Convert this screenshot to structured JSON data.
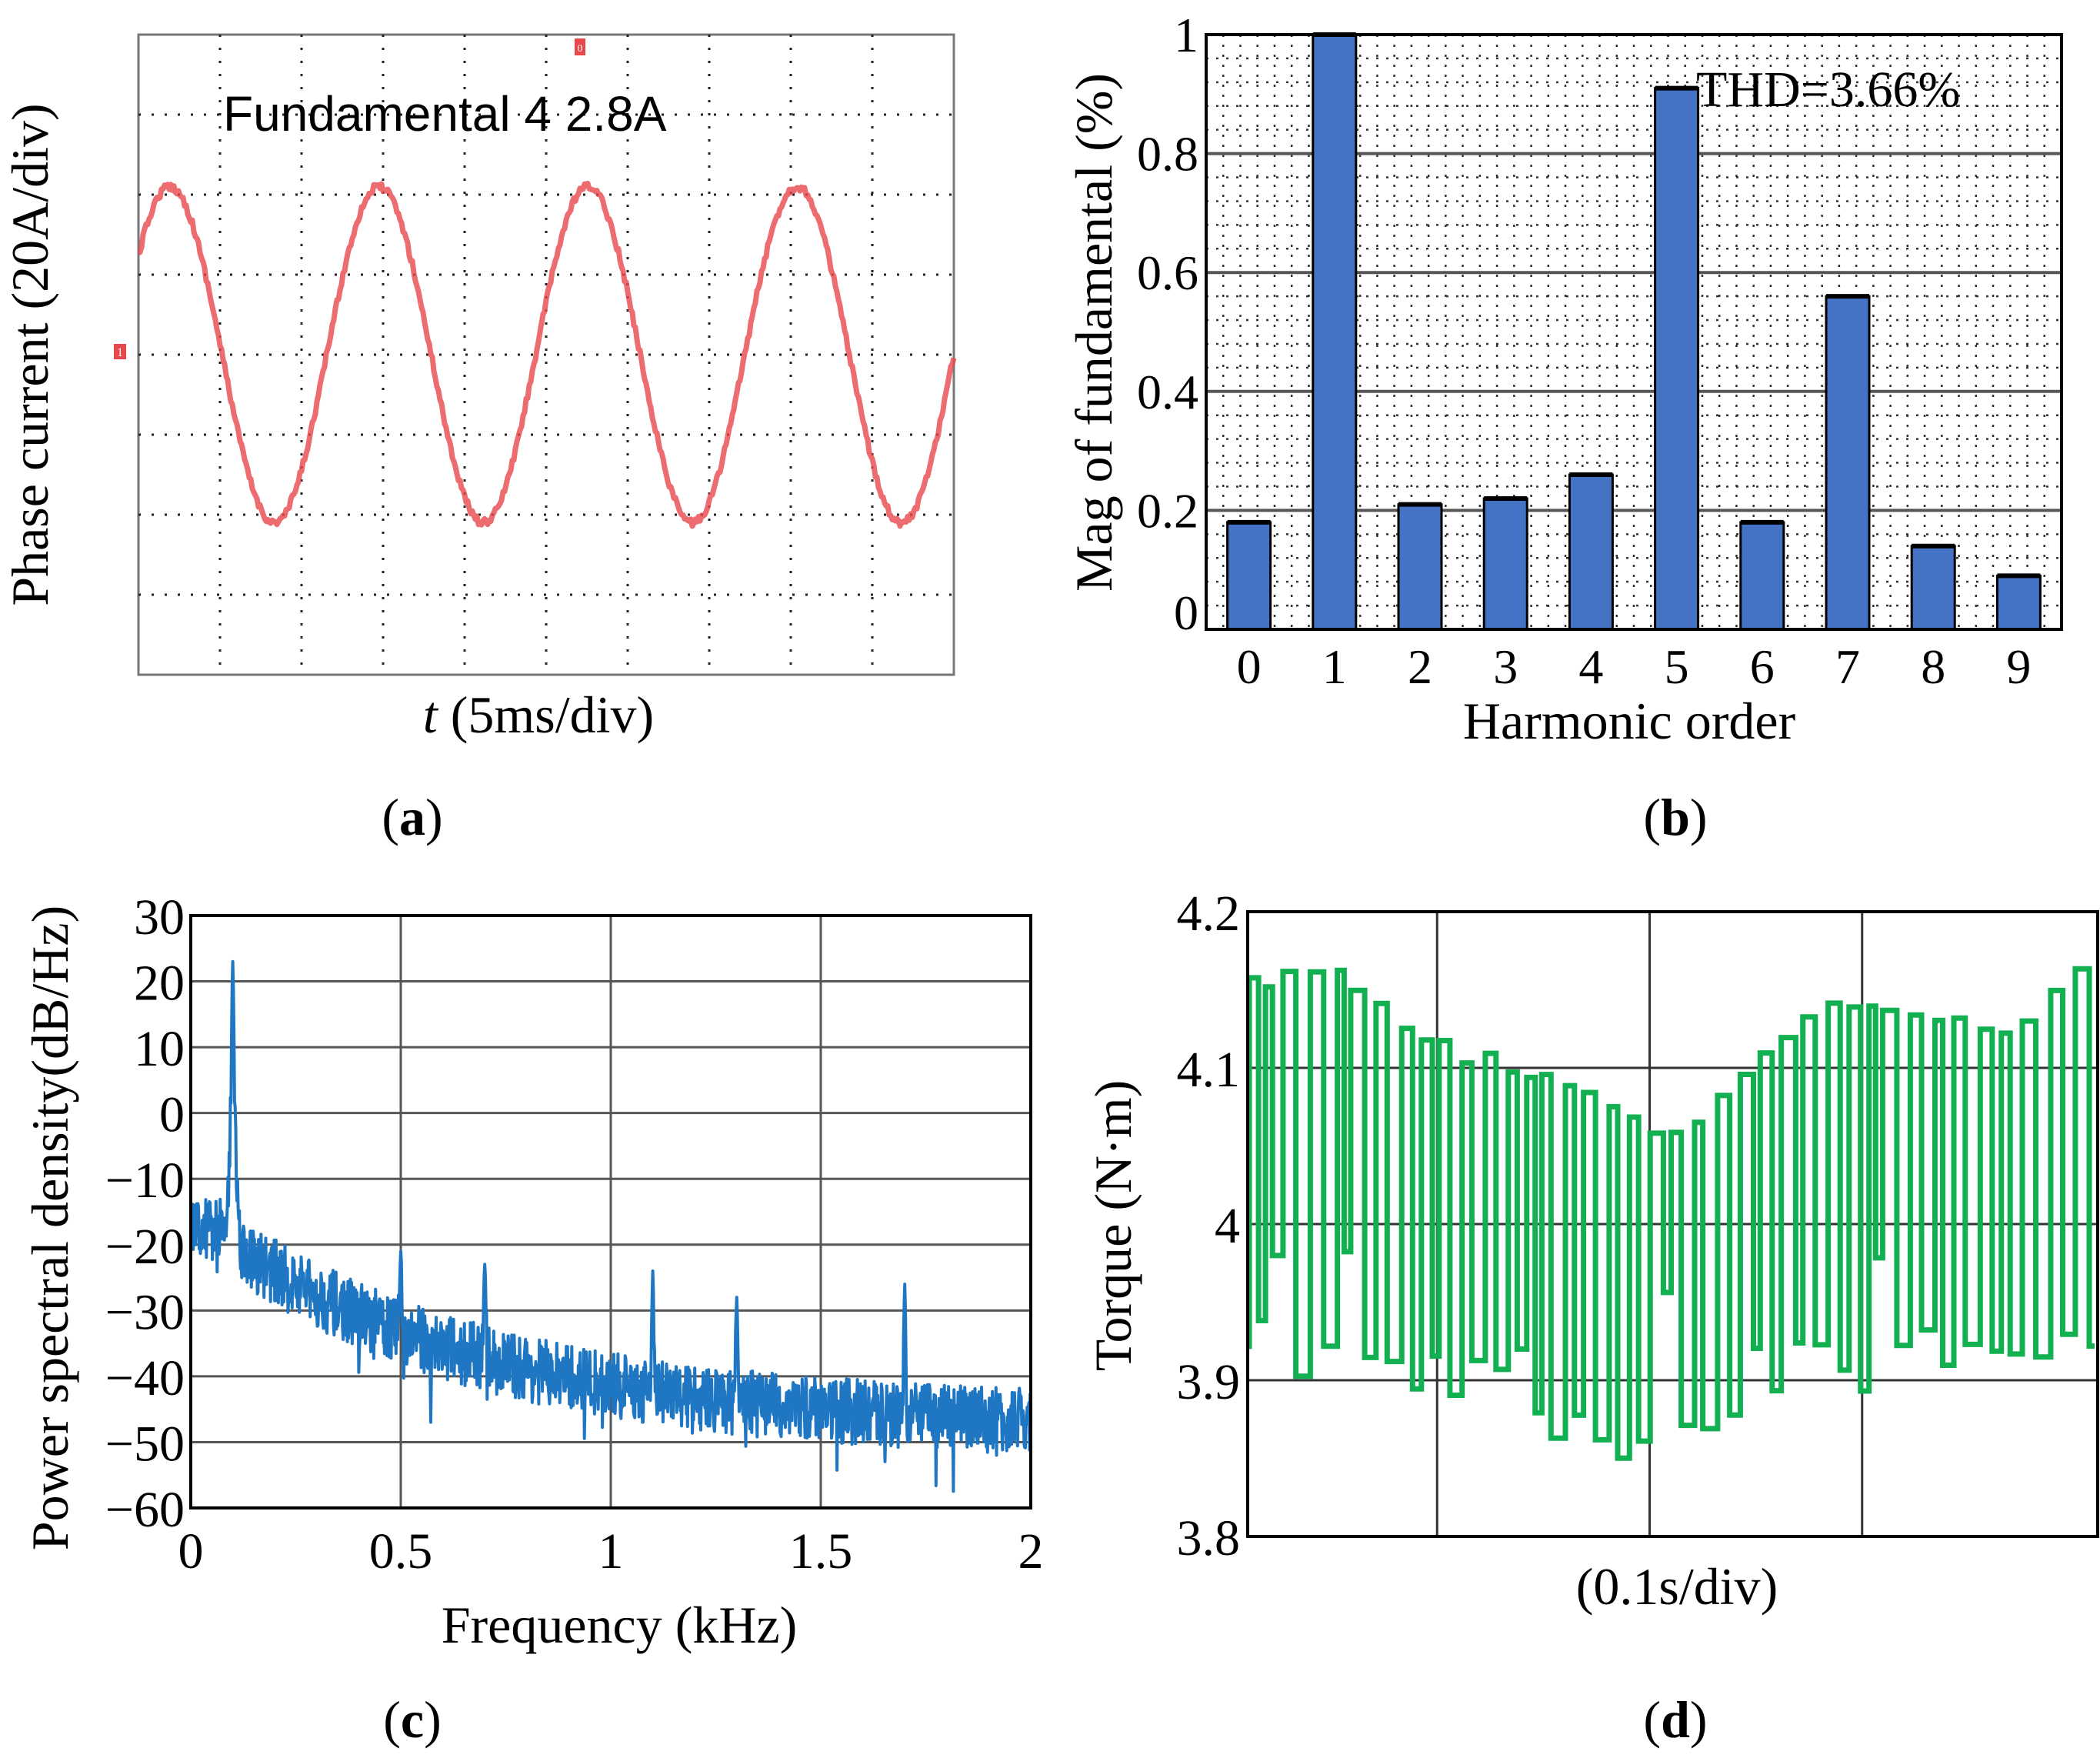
{
  "colors": {
    "scope_trace": "#e8474b",
    "bar_fill": "#4472c4",
    "psd_line": "#1f77c4",
    "torque_line": "#12b050"
  },
  "chart_data": [
    {
      "id": "a",
      "type": "line",
      "caption": "a",
      "annotation": "Fundamental  4 2.8A",
      "xlabel_italic": "t",
      "xlabel_rest": " (5ms/div)",
      "ylabel": "Phase current (20A/div)",
      "x_div": 10,
      "y_div": 8,
      "amplitude_div": 2.1,
      "periods": 3.9,
      "marker_left": "1",
      "marker_top": "0"
    },
    {
      "id": "b",
      "type": "bar",
      "caption": "b",
      "annotation": "THD=3.66%",
      "categories": [
        "0",
        "1",
        "2",
        "3",
        "4",
        "5",
        "6",
        "7",
        "8",
        "9"
      ],
      "values": [
        0.18,
        1.0,
        0.21,
        0.22,
        0.26,
        0.91,
        0.18,
        0.56,
        0.14,
        0.09
      ],
      "xlabel": "Harmonic order",
      "ylabel": "Mag of fundamental (%)",
      "ylim": [
        0,
        1
      ],
      "yticks": [
        "0",
        "0.2",
        "0.4",
        "0.6",
        "0.8",
        "1"
      ]
    },
    {
      "id": "c",
      "type": "line",
      "caption": "c",
      "xlabel": "Frequency (kHz)",
      "ylabel": "Power spectral density(dB/Hz)",
      "xlim": [
        0,
        2
      ],
      "ylim": [
        -60,
        30
      ],
      "xticks": [
        "0",
        "0.5",
        "1",
        "1.5",
        "2"
      ],
      "yticks": [
        "30",
        "20",
        "10",
        "0",
        "−10",
        "−20",
        "−30",
        "−40",
        "−50",
        "−60"
      ],
      "peaks": [
        {
          "f": 0.1,
          "db": 23
        },
        {
          "f": 0.5,
          "db": -21
        },
        {
          "f": 0.7,
          "db": -23
        },
        {
          "f": 1.1,
          "db": -24
        },
        {
          "f": 1.3,
          "db": -28
        },
        {
          "f": 1.7,
          "db": -26
        }
      ]
    },
    {
      "id": "d",
      "type": "line",
      "caption": "d",
      "xlabel": "(0.1s/div)",
      "ylabel": "Torque (N·m)",
      "ylim": [
        3.8,
        4.2
      ],
      "yticks": [
        "4.2",
        "4.1",
        "4",
        "3.9",
        "3.8"
      ],
      "upper_envelope": [
        4.16,
        4.17,
        4.12,
        4.11,
        4.09,
        4.06,
        4.12,
        4.15,
        4.14,
        4.13,
        4.18
      ],
      "lower_envelope": [
        3.89,
        3.9,
        3.87,
        3.86,
        3.83,
        3.85,
        3.87,
        3.88,
        3.89,
        3.9,
        3.92
      ]
    }
  ]
}
